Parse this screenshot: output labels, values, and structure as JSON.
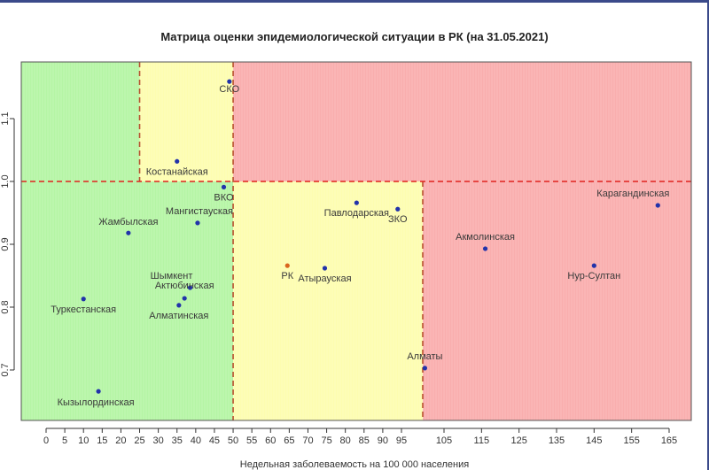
{
  "chart_data": {
    "type": "scatter",
    "title": "Матрица оценки эпидемиологической ситуации в РК (на 31.05.2021)",
    "xlabel": "Недельная заболеваемость на 100 000 населения",
    "ylabel": "",
    "x_ticks": [
      {
        "label": "0",
        "value": 0
      },
      {
        "label": "5",
        "value": 5
      },
      {
        "label": "10",
        "value": 10
      },
      {
        "label": "15",
        "value": 15
      },
      {
        "label": "20",
        "value": 20
      },
      {
        "label": "25",
        "value": 25
      },
      {
        "label": "30",
        "value": 30
      },
      {
        "label": "35",
        "value": 35
      },
      {
        "label": "40",
        "value": 40
      },
      {
        "label": "45",
        "value": 45
      },
      {
        "label": "50",
        "value": 50
      },
      {
        "label": "55",
        "value": 55
      },
      {
        "label": "60",
        "value": 60
      },
      {
        "label": "65",
        "value": 65
      },
      {
        "label": "70",
        "value": 70
      },
      {
        "label": "75",
        "value": 75
      },
      {
        "label": "80",
        "value": 80
      },
      {
        "label": "85",
        "value": 85
      },
      {
        "label": "90",
        "value": 90
      },
      {
        "label": "95",
        "value": 95
      },
      {
        "label": "105",
        "value": 105
      },
      {
        "label": "115",
        "value": 115
      },
      {
        "label": "125",
        "value": 125
      },
      {
        "label": "135",
        "value": 135
      },
      {
        "label": "145",
        "value": 145
      },
      {
        "label": "155",
        "value": 155
      },
      {
        "label": "165",
        "value": 165
      }
    ],
    "y_ticks": [
      "0.7",
      "0.8",
      "0.9",
      "1.0",
      "1.1"
    ],
    "ylim": [
      0.64,
      1.19
    ],
    "thresholds": {
      "x_low": 25,
      "x_mid": 50,
      "x_high": 100,
      "y": 1.0
    },
    "zone_colors": {
      "green": "#b5f5a5",
      "yellow": "#fdfdb0",
      "red": "#f9aeae",
      "dash": "#b8512e",
      "dash_h": "#e0231e"
    },
    "points": [
      {
        "name": "СКО",
        "x": 49,
        "y": 1.159,
        "color": "#2233aa"
      },
      {
        "name": "Костанайская",
        "x": 35,
        "y": 1.032,
        "color": "#2233aa"
      },
      {
        "name": "ВКО",
        "x": 47.5,
        "y": 0.991,
        "color": "#2233aa"
      },
      {
        "name": "Мангистауская",
        "x": 40.5,
        "y": 0.934,
        "color": "#2233aa"
      },
      {
        "name": "Жамбылская",
        "x": 22,
        "y": 0.918,
        "color": "#2233aa"
      },
      {
        "name": "Шымкент",
        "x": 38.5,
        "y": 0.831,
        "color": "#2233aa"
      },
      {
        "name": "Актюбинская",
        "x": 37,
        "y": 0.814,
        "color": "#2233aa"
      },
      {
        "name": "Алматинская",
        "x": 35.5,
        "y": 0.803,
        "color": "#2233aa"
      },
      {
        "name": "Туркестанская",
        "x": 10,
        "y": 0.813,
        "color": "#2233aa"
      },
      {
        "name": "Кызылординская",
        "x": 14,
        "y": 0.666,
        "color": "#2233aa"
      },
      {
        "name": "РК",
        "x": 64.5,
        "y": 0.866,
        "color": "#d9661e"
      },
      {
        "name": "Атырауская",
        "x": 74.5,
        "y": 0.862,
        "color": "#2233aa"
      },
      {
        "name": "Павлодарская",
        "x": 83,
        "y": 0.966,
        "color": "#2233aa"
      },
      {
        "name": "ЗКО",
        "x": 94,
        "y": 0.956,
        "color": "#2233aa"
      },
      {
        "name": "Алматы",
        "x": 100.5,
        "y": 0.703,
        "color": "#2233aa"
      },
      {
        "name": "Акмолинская",
        "x": 116,
        "y": 0.893,
        "color": "#2233aa"
      },
      {
        "name": "Нур-Султан",
        "x": 145,
        "y": 0.866,
        "color": "#2233aa"
      },
      {
        "name": "Карагандинская",
        "x": 162,
        "y": 0.962,
        "color": "#2233aa"
      }
    ]
  }
}
